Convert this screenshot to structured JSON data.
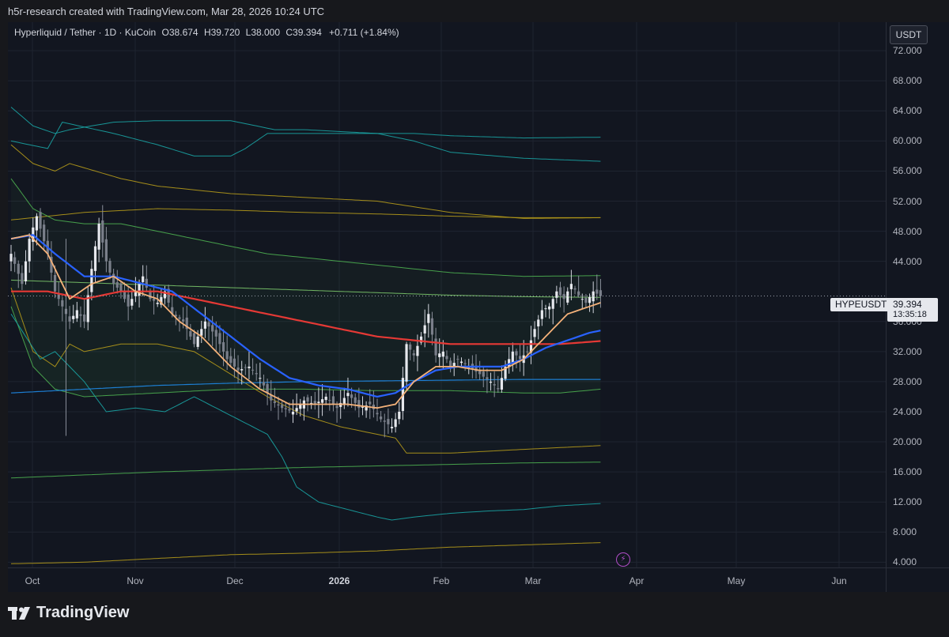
{
  "header": {
    "attribution": "h5r-research created with TradingView.com, Mar 28, 2026 10:24 UTC"
  },
  "legend": {
    "symbol": "Hyperliquid / Tether · 1D · KuCoin",
    "open": "O38.674",
    "high": "H39.720",
    "low": "L38.000",
    "close": "C39.394",
    "change": "+0.711 (+1.84%)"
  },
  "currency_button": "USDT",
  "symbol_tag": "HYPEUSDT",
  "price_tag": {
    "price": "39.394",
    "countdown": "13:35:18"
  },
  "brand": {
    "name": "TradingView"
  },
  "colors": {
    "background": "#121620",
    "candle": "#d1d4dc",
    "ema_fast": "#f5b27a",
    "ema_mid": "#2962ff",
    "ema_slow": "#e53935",
    "band_teal": "#1aa3a3",
    "band_green": "#4caf50",
    "band_olive": "#b59a1a",
    "band_blue": "#1e88e5"
  },
  "chart_data": {
    "type": "candlestick",
    "y_ticks": [
      "72.000",
      "68.000",
      "64.000",
      "60.000",
      "56.000",
      "52.000",
      "48.000",
      "44.000",
      "36.000",
      "32.000",
      "28.000",
      "24.000",
      "20.000",
      "16.000",
      "12.000",
      "8.000",
      "4.000"
    ],
    "x_ticks": [
      "Oct",
      "Nov",
      "Dec",
      "2026",
      "Feb",
      "Mar",
      "Apr",
      "May",
      "Jun"
    ],
    "ylim": [
      3.3,
      75.8
    ],
    "last_price": 39.394,
    "anchors": {
      "close": [
        [
          0,
          45
        ],
        [
          3,
          41
        ],
        [
          5,
          47
        ],
        [
          7,
          50
        ],
        [
          10,
          45
        ],
        [
          12,
          40
        ],
        [
          14,
          38
        ],
        [
          16,
          36
        ],
        [
          18,
          37.5
        ],
        [
          20,
          36
        ],
        [
          22,
          43
        ],
        [
          24,
          49
        ],
        [
          26,
          44
        ],
        [
          28,
          41
        ],
        [
          30,
          40
        ],
        [
          32,
          38
        ],
        [
          34,
          40
        ],
        [
          36,
          42
        ],
        [
          38,
          39
        ],
        [
          40,
          38.5
        ],
        [
          42,
          40
        ],
        [
          44,
          37
        ],
        [
          47,
          36
        ],
        [
          50,
          33
        ],
        [
          53,
          36
        ],
        [
          56,
          34
        ],
        [
          59,
          31
        ],
        [
          62,
          29.5
        ],
        [
          65,
          30
        ],
        [
          68,
          28.5
        ],
        [
          71,
          25.5
        ],
        [
          74,
          24.5
        ],
        [
          77,
          24
        ],
        [
          80,
          25.5
        ],
        [
          83,
          25
        ],
        [
          86,
          26
        ],
        [
          89,
          24.5
        ],
        [
          92,
          26.5
        ],
        [
          95,
          24.5
        ],
        [
          98,
          25
        ],
        [
          101,
          23
        ],
        [
          104,
          22
        ],
        [
          106,
          24
        ],
        [
          108,
          33
        ],
        [
          110,
          31.5
        ],
        [
          112,
          34
        ],
        [
          114,
          37
        ],
        [
          116,
          31.5
        ],
        [
          118,
          32
        ],
        [
          120,
          30
        ],
        [
          122,
          31
        ],
        [
          125,
          30
        ],
        [
          128,
          29
        ],
        [
          131,
          28
        ],
        [
          133,
          27
        ],
        [
          135,
          30
        ],
        [
          137,
          32
        ],
        [
          139,
          31
        ],
        [
          141,
          32
        ],
        [
          143,
          35
        ],
        [
          145,
          37.5
        ],
        [
          147,
          38
        ],
        [
          149,
          40
        ],
        [
          151,
          39
        ],
        [
          153,
          41
        ],
        [
          155,
          39.5
        ],
        [
          157,
          38.5
        ],
        [
          159,
          40
        ],
        [
          161,
          39.394
        ]
      ],
      "ema_fast": [
        [
          0,
          47
        ],
        [
          5,
          47.5
        ],
        [
          10,
          45
        ],
        [
          16,
          39
        ],
        [
          22,
          41
        ],
        [
          28,
          42
        ],
        [
          34,
          40
        ],
        [
          40,
          39
        ],
        [
          46,
          36
        ],
        [
          52,
          34
        ],
        [
          60,
          30
        ],
        [
          68,
          27
        ],
        [
          76,
          25
        ],
        [
          84,
          25
        ],
        [
          92,
          25
        ],
        [
          100,
          24.5
        ],
        [
          105,
          25
        ],
        [
          110,
          28
        ],
        [
          116,
          30
        ],
        [
          122,
          30
        ],
        [
          128,
          29.5
        ],
        [
          134,
          29.5
        ],
        [
          140,
          31
        ],
        [
          146,
          34
        ],
        [
          152,
          37
        ],
        [
          158,
          38
        ],
        [
          161,
          38.5
        ]
      ],
      "ema_mid": [
        [
          0,
          47
        ],
        [
          6,
          47.5
        ],
        [
          12,
          45
        ],
        [
          20,
          42
        ],
        [
          28,
          42
        ],
        [
          36,
          41
        ],
        [
          44,
          40
        ],
        [
          52,
          37
        ],
        [
          60,
          34
        ],
        [
          68,
          31
        ],
        [
          76,
          28.5
        ],
        [
          84,
          27.5
        ],
        [
          92,
          27
        ],
        [
          100,
          26
        ],
        [
          105,
          26.5
        ],
        [
          110,
          28
        ],
        [
          116,
          29.5
        ],
        [
          122,
          30
        ],
        [
          128,
          30
        ],
        [
          134,
          30
        ],
        [
          140,
          31
        ],
        [
          146,
          32.5
        ],
        [
          152,
          33.5
        ],
        [
          158,
          34.5
        ],
        [
          161,
          34.8
        ]
      ],
      "ema_slow": [
        [
          0,
          40
        ],
        [
          10,
          40
        ],
        [
          20,
          39
        ],
        [
          30,
          40
        ],
        [
          40,
          40
        ],
        [
          50,
          39
        ],
        [
          60,
          38
        ],
        [
          70,
          37
        ],
        [
          80,
          36
        ],
        [
          90,
          35
        ],
        [
          100,
          34
        ],
        [
          110,
          33.5
        ],
        [
          120,
          33
        ],
        [
          130,
          33
        ],
        [
          140,
          33
        ],
        [
          150,
          33
        ],
        [
          161,
          33.4
        ]
      ],
      "band_blue": [
        [
          0,
          26.5
        ],
        [
          20,
          27
        ],
        [
          40,
          27.5
        ],
        [
          60,
          27.8
        ],
        [
          80,
          28
        ],
        [
          100,
          28.1
        ],
        [
          120,
          28.2
        ],
        [
          140,
          28.3
        ],
        [
          161,
          28.3
        ]
      ],
      "teal_u1": [
        [
          0,
          64.5
        ],
        [
          6,
          62
        ],
        [
          12,
          61
        ],
        [
          16,
          61.5
        ],
        [
          28,
          62.5
        ],
        [
          40,
          62.7
        ],
        [
          60,
          62.7
        ],
        [
          72,
          61.5
        ],
        [
          80,
          61.5
        ],
        [
          100,
          61
        ],
        [
          110,
          61
        ],
        [
          120,
          60.7
        ],
        [
          140,
          60.4
        ],
        [
          161,
          60.5
        ]
      ],
      "teal_u2": [
        [
          0,
          60
        ],
        [
          10,
          59
        ],
        [
          14,
          62.5
        ],
        [
          28,
          61
        ],
        [
          40,
          59.5
        ],
        [
          50,
          58
        ],
        [
          60,
          58
        ],
        [
          64,
          59
        ],
        [
          70,
          61
        ],
        [
          80,
          61
        ],
        [
          100,
          61
        ],
        [
          110,
          60
        ],
        [
          120,
          58.5
        ],
        [
          140,
          57.7
        ],
        [
          161,
          57.3
        ]
      ],
      "olive_u1": [
        [
          0,
          59.5
        ],
        [
          6,
          57
        ],
        [
          12,
          56
        ],
        [
          16,
          57
        ],
        [
          30,
          55
        ],
        [
          40,
          54
        ],
        [
          60,
          53
        ],
        [
          80,
          52.5
        ],
        [
          100,
          52
        ],
        [
          120,
          50.5
        ],
        [
          140,
          49.7
        ],
        [
          161,
          49.8
        ]
      ],
      "olive_u2": [
        [
          0,
          49.5
        ],
        [
          10,
          50
        ],
        [
          20,
          50.5
        ],
        [
          40,
          51
        ],
        [
          60,
          50.8
        ],
        [
          80,
          50.5
        ],
        [
          100,
          50.3
        ],
        [
          120,
          50
        ],
        [
          140,
          49.8
        ],
        [
          161,
          49.8
        ]
      ],
      "green_u1": [
        [
          0,
          55
        ],
        [
          6,
          51
        ],
        [
          12,
          49.5
        ],
        [
          20,
          49
        ],
        [
          30,
          49
        ],
        [
          40,
          48
        ],
        [
          50,
          47
        ],
        [
          60,
          46
        ],
        [
          70,
          45
        ],
        [
          80,
          44.5
        ],
        [
          100,
          43.5
        ],
        [
          120,
          42.5
        ],
        [
          140,
          42
        ],
        [
          161,
          42.1
        ]
      ],
      "green_mid": [
        [
          0,
          41.5
        ],
        [
          30,
          41
        ],
        [
          60,
          40.5
        ],
        [
          90,
          40
        ],
        [
          120,
          39.5
        ],
        [
          140,
          39.3
        ],
        [
          161,
          39.2
        ]
      ],
      "green_l1": [
        [
          0,
          38
        ],
        [
          6,
          30
        ],
        [
          12,
          27
        ],
        [
          20,
          26
        ],
        [
          40,
          26.5
        ],
        [
          60,
          27
        ],
        [
          80,
          27
        ],
        [
          100,
          26.8
        ],
        [
          120,
          26.8
        ],
        [
          140,
          26.5
        ],
        [
          150,
          26.5
        ],
        [
          161,
          27
        ]
      ],
      "olive_l1": [
        [
          0,
          40.5
        ],
        [
          6,
          32
        ],
        [
          12,
          30
        ],
        [
          16,
          33
        ],
        [
          20,
          32
        ],
        [
          30,
          33
        ],
        [
          40,
          33
        ],
        [
          50,
          32
        ],
        [
          60,
          29
        ],
        [
          70,
          26
        ],
        [
          80,
          23.5
        ],
        [
          90,
          22
        ],
        [
          100,
          21
        ],
        [
          105,
          20.5
        ],
        [
          108,
          18.5
        ],
        [
          120,
          18.5
        ],
        [
          140,
          19
        ],
        [
          161,
          19.5
        ]
      ],
      "teal_l1": [
        [
          0,
          37
        ],
        [
          4,
          34
        ],
        [
          8,
          31
        ],
        [
          12,
          32
        ],
        [
          16,
          30
        ],
        [
          20,
          28
        ],
        [
          26,
          24
        ],
        [
          34,
          24.5
        ],
        [
          42,
          24
        ],
        [
          50,
          26
        ],
        [
          56,
          24.5
        ],
        [
          62,
          23
        ],
        [
          70,
          21
        ],
        [
          74,
          18
        ],
        [
          78,
          14
        ],
        [
          84,
          12
        ],
        [
          92,
          11
        ],
        [
          100,
          10
        ],
        [
          104,
          9.6
        ],
        [
          110,
          10
        ],
        [
          120,
          10.5
        ],
        [
          130,
          10.8
        ],
        [
          140,
          11
        ],
        [
          150,
          11.5
        ],
        [
          161,
          11.8
        ]
      ],
      "green_l2": [
        [
          0,
          15.2
        ],
        [
          20,
          15.6
        ],
        [
          40,
          16
        ],
        [
          60,
          16.3
        ],
        [
          80,
          16.6
        ],
        [
          100,
          16.8
        ],
        [
          120,
          17
        ],
        [
          140,
          17.2
        ],
        [
          161,
          17.3
        ]
      ],
      "olive_l2": [
        [
          0,
          3.8
        ],
        [
          20,
          4
        ],
        [
          40,
          4.5
        ],
        [
          60,
          5
        ],
        [
          80,
          5.2
        ],
        [
          100,
          5.5
        ],
        [
          120,
          6
        ],
        [
          140,
          6.3
        ],
        [
          161,
          6.6
        ]
      ]
    }
  }
}
